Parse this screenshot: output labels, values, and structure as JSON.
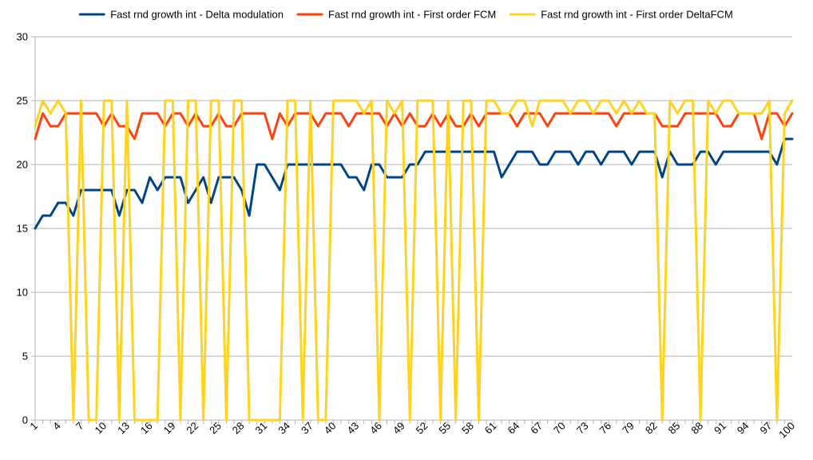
{
  "chart_data": {
    "type": "line",
    "title": "",
    "xlabel": "",
    "ylabel": "",
    "ylim": [
      0,
      30
    ],
    "y_ticks": [
      0,
      5,
      10,
      15,
      20,
      25,
      30
    ],
    "x_range": [
      1,
      100
    ],
    "x_tick_labels": [
      1,
      4,
      7,
      10,
      13,
      16,
      19,
      22,
      25,
      28,
      31,
      34,
      37,
      40,
      43,
      46,
      49,
      52,
      55,
      58,
      61,
      64,
      67,
      70,
      73,
      76,
      79,
      82,
      85,
      88,
      91,
      94,
      97,
      100
    ],
    "grid": "horizontal",
    "legend_position": "top",
    "series": [
      {
        "name": "Fast rnd growth int - Delta modulation",
        "color": "#004586",
        "values": [
          15,
          16,
          16,
          17,
          17,
          16,
          18,
          18,
          18,
          18,
          18,
          16,
          18,
          18,
          17,
          19,
          18,
          19,
          19,
          19,
          17,
          18,
          19,
          17,
          19,
          19,
          19,
          18,
          16,
          20,
          20,
          19,
          18,
          20,
          20,
          20,
          20,
          20,
          20,
          20,
          20,
          19,
          19,
          18,
          20,
          20,
          19,
          19,
          19,
          20,
          20,
          21,
          21,
          21,
          21,
          21,
          21,
          21,
          21,
          21,
          21,
          19,
          20,
          21,
          21,
          21,
          20,
          20,
          21,
          21,
          21,
          20,
          21,
          21,
          20,
          21,
          21,
          21,
          20,
          21,
          21,
          21,
          19,
          21,
          20,
          20,
          20,
          21,
          21,
          20,
          21,
          21,
          21,
          21,
          21,
          21,
          21,
          20,
          22,
          22
        ]
      },
      {
        "name": "Fast rnd growth int - First order FCM",
        "color": "#ff420e",
        "values": [
          22,
          24,
          23,
          23,
          24,
          24,
          24,
          24,
          24,
          23,
          24,
          23,
          23,
          22,
          24,
          24,
          24,
          23,
          24,
          24,
          23,
          24,
          23,
          23,
          24,
          23,
          23,
          24,
          24,
          24,
          24,
          22,
          24,
          23,
          24,
          24,
          24,
          23,
          24,
          24,
          24,
          23,
          24,
          24,
          24,
          24,
          23,
          24,
          23,
          24,
          23,
          23,
          24,
          23,
          24,
          23,
          23,
          24,
          23,
          24,
          24,
          24,
          24,
          23,
          24,
          24,
          24,
          23,
          24,
          24,
          24,
          24,
          24,
          24,
          24,
          24,
          23,
          24,
          24,
          24,
          24,
          24,
          23,
          23,
          23,
          24,
          24,
          24,
          24,
          24,
          23,
          23,
          24,
          24,
          24,
          22,
          24,
          24,
          23,
          24
        ]
      },
      {
        "name": "Fast rnd growth int - First order DeltaFCM",
        "color": "#ffd320",
        "values": [
          23,
          25,
          24,
          25,
          24,
          0,
          25,
          0,
          0,
          25,
          25,
          0,
          25,
          0,
          0,
          0,
          0,
          25,
          25,
          0,
          25,
          25,
          0,
          25,
          25,
          0,
          25,
          25,
          0,
          0,
          0,
          0,
          0,
          25,
          25,
          0,
          25,
          0,
          0,
          25,
          25,
          25,
          25,
          24,
          25,
          0,
          25,
          24,
          25,
          0,
          25,
          25,
          25,
          0,
          25,
          0,
          25,
          25,
          0,
          25,
          25,
          24,
          24,
          25,
          25,
          23,
          25,
          25,
          25,
          25,
          24,
          25,
          25,
          24,
          25,
          25,
          24,
          25,
          24,
          25,
          24,
          24,
          0,
          25,
          24,
          25,
          25,
          0,
          25,
          24,
          25,
          25,
          24,
          24,
          24,
          24,
          25,
          0,
          24,
          25
        ]
      }
    ]
  }
}
